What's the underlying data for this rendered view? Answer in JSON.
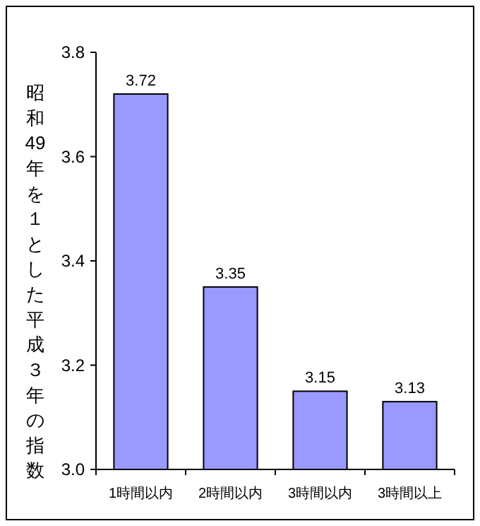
{
  "chart_data": {
    "type": "bar",
    "ylabel": "昭和49年を１とした平成３年の指数",
    "categories": [
      "1時間以内",
      "2時間以内",
      "3時間以内",
      "3時間以上"
    ],
    "values": [
      3.72,
      3.35,
      3.15,
      3.13
    ],
    "color": "#9999ff",
    "ylim": [
      3.0,
      3.8
    ],
    "yticks": [
      {
        "value": 3.0,
        "label": "3.0"
      },
      {
        "value": 3.2,
        "label": "3.2"
      },
      {
        "value": 3.4,
        "label": "3.4"
      },
      {
        "value": 3.6,
        "label": "3.6"
      },
      {
        "value": 3.8,
        "label": "3.8"
      }
    ],
    "data_labels": true,
    "grid": false
  }
}
